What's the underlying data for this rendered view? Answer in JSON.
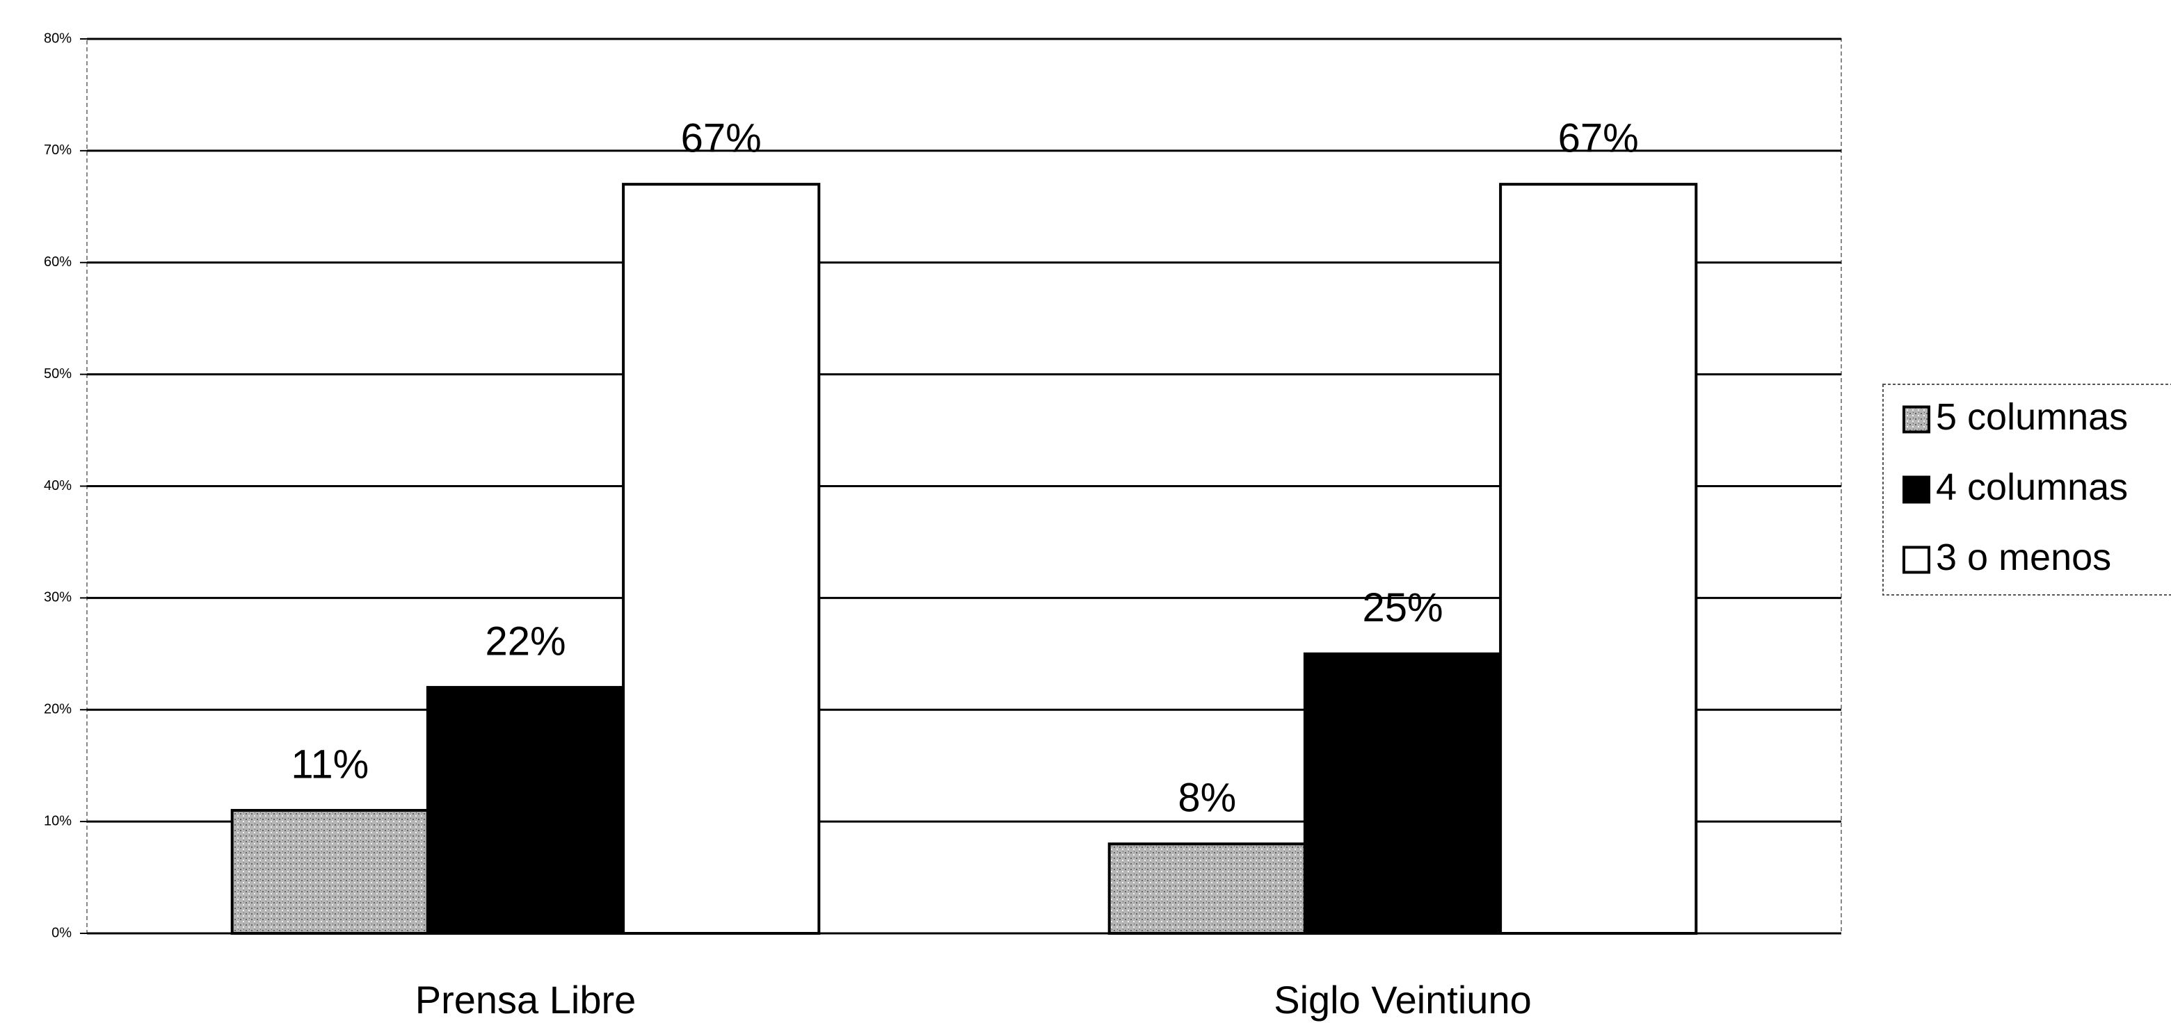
{
  "chart_data": {
    "type": "bar",
    "categories": [
      "Prensa Libre",
      "Siglo Veintiuno"
    ],
    "series": [
      {
        "name": "5 columnas",
        "color": "#a9a9a9",
        "values": [
          11,
          8
        ],
        "value_labels": [
          "11%",
          "8%"
        ]
      },
      {
        "name": "4 columnas",
        "color": "#000000",
        "values": [
          22,
          25
        ],
        "value_labels": [
          "22%",
          "25%"
        ]
      },
      {
        "name": "3 o menos",
        "color": "#ffffff",
        "values": [
          67,
          67
        ],
        "value_labels": [
          "67%",
          "67%"
        ]
      }
    ],
    "ylim": [
      0,
      80
    ],
    "yticks": [
      {
        "value": 0,
        "label": "0%"
      },
      {
        "value": 10,
        "label": "10%"
      },
      {
        "value": 20,
        "label": "20%"
      },
      {
        "value": 30,
        "label": "30%"
      },
      {
        "value": 40,
        "label": "40%"
      },
      {
        "value": 50,
        "label": "50%"
      },
      {
        "value": 60,
        "label": "60%"
      },
      {
        "value": 70,
        "label": "70%"
      },
      {
        "value": 80,
        "label": "80%"
      }
    ],
    "grid": true,
    "legend": "right"
  }
}
